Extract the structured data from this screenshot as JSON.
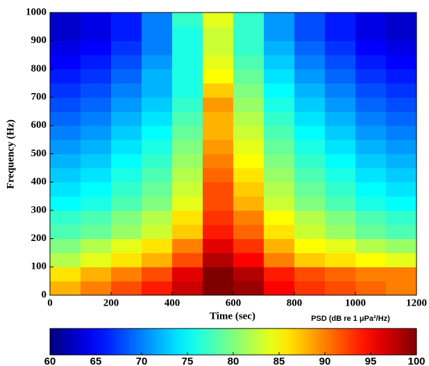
{
  "chart_data": {
    "type": "heatmap",
    "xlabel": "Time (sec)",
    "ylabel": "Frequency (Hz)",
    "colorbar_label": "PSD (dB re 1 μPa²/Hz)",
    "colormap": "jet",
    "x_bins": [
      0,
      100,
      200,
      300,
      400,
      500,
      600,
      700,
      800,
      900,
      1000,
      1100,
      1200
    ],
    "y_bins": [
      0,
      50,
      100,
      150,
      200,
      250,
      300,
      350,
      400,
      450,
      500,
      550,
      600,
      650,
      700,
      750,
      800,
      850,
      900,
      950,
      1000
    ],
    "z": [
      [
        88,
        90,
        92,
        94,
        97,
        100,
        99,
        95,
        93,
        92,
        91,
        90
      ],
      [
        86,
        88,
        90,
        92,
        96,
        100,
        98,
        94,
        92,
        91,
        90,
        90
      ],
      [
        82,
        84,
        86,
        88,
        92,
        98,
        95,
        90,
        87,
        86,
        85,
        84
      ],
      [
        80,
        82,
        84,
        86,
        90,
        96,
        93,
        88,
        85,
        84,
        82,
        81
      ],
      [
        78,
        79,
        81,
        83,
        87,
        94,
        91,
        86,
        83,
        81,
        79,
        78
      ],
      [
        77,
        78,
        80,
        82,
        86,
        93,
        90,
        85,
        82,
        80,
        78,
        77
      ],
      [
        75,
        76,
        78,
        80,
        84,
        92,
        88,
        83,
        80,
        78,
        76,
        75
      ],
      [
        74,
        75,
        77,
        79,
        83,
        92,
        87,
        82,
        79,
        77,
        75,
        74
      ],
      [
        73,
        74,
        76,
        78,
        82,
        91,
        86,
        81,
        78,
        76,
        74,
        73
      ],
      [
        72,
        73,
        75,
        77,
        81,
        90,
        85,
        80,
        77,
        75,
        73,
        72
      ],
      [
        71,
        72,
        74,
        76,
        80,
        89,
        84,
        79,
        76,
        74,
        72,
        71
      ],
      [
        70,
        71,
        73,
        75,
        79,
        88,
        83,
        78,
        75,
        73,
        71,
        70
      ],
      [
        69,
        70,
        72,
        74,
        78,
        88,
        82,
        77,
        74,
        72,
        70,
        69
      ],
      [
        68,
        69,
        71,
        73,
        77,
        89,
        81,
        76,
        73,
        71,
        69,
        68
      ],
      [
        67,
        68,
        70,
        72,
        76,
        87,
        80,
        75,
        72,
        70,
        68,
        67
      ],
      [
        66,
        67,
        69,
        72,
        76,
        85,
        79,
        74,
        71,
        69,
        67,
        66
      ],
      [
        65,
        66,
        68,
        71,
        76,
        84,
        78,
        73,
        70,
        68,
        66,
        65
      ],
      [
        64,
        65,
        67,
        70,
        76,
        83,
        77,
        72,
        69,
        67,
        65,
        64
      ],
      [
        63,
        64,
        66,
        70,
        76,
        83,
        77,
        71,
        68,
        66,
        64,
        63
      ],
      [
        63,
        64,
        66,
        70,
        77,
        84,
        77,
        71,
        68,
        66,
        64,
        63
      ]
    ],
    "xlim": [
      0,
      1200
    ],
    "xticks": [
      0,
      200,
      400,
      600,
      800,
      1000,
      1200
    ],
    "ylim": [
      0,
      1000
    ],
    "yticks": [
      0,
      100,
      200,
      300,
      400,
      500,
      600,
      700,
      800,
      900,
      1000
    ],
    "zlim": [
      60,
      100
    ],
    "zticks": [
      60,
      65,
      70,
      75,
      80,
      85,
      90,
      95,
      100
    ]
  }
}
